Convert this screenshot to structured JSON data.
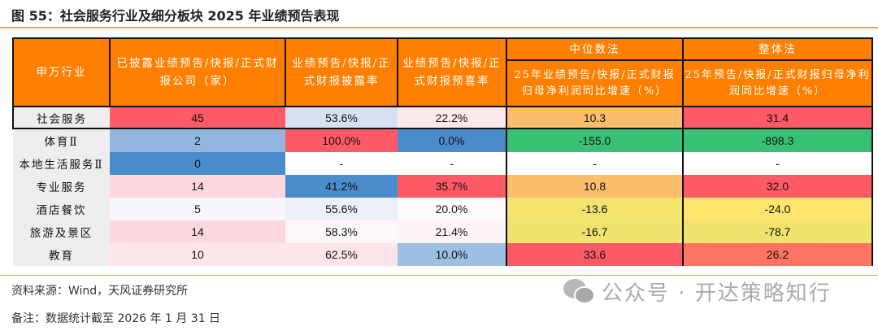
{
  "title": "图 55：社会服务行业及细分板块 2025 年业绩预告表现",
  "header": {
    "industry": "申万行业",
    "count": "已披露业绩预告/快报/正式财报公司（家）",
    "disclosure_rate": "业绩预告/快报/正式财报披露率",
    "positive_rate": "业绩预告/快报/正式财报预喜率",
    "median_group": "中位数法",
    "median": "25年业绩预告/快报/正式财报归母净利润同比增速（%）",
    "overall_group": "整体法",
    "overall": "25年预告/快报/正式财报归母净利润同比增速（%）"
  },
  "rows": [
    {
      "name": "社会服务",
      "count": "45",
      "disclosure": "53.6%",
      "positive": "22.2%",
      "median": "10.3",
      "overall": "31.4",
      "colors": [
        "#ff5a66",
        "#d6e2f3",
        "#fde9ec",
        "#fdbe6c",
        "#ff5a66"
      ]
    },
    {
      "name": "体育Ⅱ",
      "count": "2",
      "disclosure": "100.0%",
      "positive": "0.0%",
      "median": "-155.0",
      "overall": "-898.3",
      "colors": [
        "#93b6de",
        "#ff5a66",
        "#4a8bcb",
        "#38c174",
        "#38c174"
      ]
    },
    {
      "name": "本地生活服务Ⅱ",
      "count": "0",
      "disclosure": "-",
      "positive": "-",
      "median": "-",
      "overall": "-",
      "colors": [
        "#4a8bcb",
        "#ffffff",
        "#ffffff",
        "#ffffff",
        "#ffffff"
      ]
    },
    {
      "name": "专业服务",
      "count": "14",
      "disclosure": "41.2%",
      "positive": "35.7%",
      "median": "10.8",
      "overall": "32.0",
      "colors": [
        "#fdd8de",
        "#4a8bcb",
        "#ff5a66",
        "#fdbe6c",
        "#ff5a66"
      ]
    },
    {
      "name": "酒店餐饮",
      "count": "5",
      "disclosure": "55.6%",
      "positive": "20.0%",
      "median": "-13.6",
      "overall": "-24.0",
      "colors": [
        "#f8f8fc",
        "#ecf1f9",
        "#fdfafc",
        "#f3e46e",
        "#fde56e"
      ]
    },
    {
      "name": "旅游及景区",
      "count": "14",
      "disclosure": "58.3%",
      "positive": "21.4%",
      "median": "-16.7",
      "overall": "-78.7",
      "colors": [
        "#fdd8de",
        "#fdf7fa",
        "#fdf4f7",
        "#f1e46e",
        "#f1e46e"
      ]
    },
    {
      "name": "教育",
      "count": "10",
      "disclosure": "62.5%",
      "positive": "10.0%",
      "median": "33.6",
      "overall": "26.2",
      "colors": [
        "#fde5ea",
        "#fde5ea",
        "#9dc0e3",
        "#ff5a66",
        "#fe7563"
      ]
    }
  ],
  "source": "资料来源：Wind，天风证券研究所",
  "note": "备注：数据统计截至 2026 年 1 月 31 日",
  "watermark": "公众号 · 开达策略知行",
  "accent": "#ff7f00"
}
